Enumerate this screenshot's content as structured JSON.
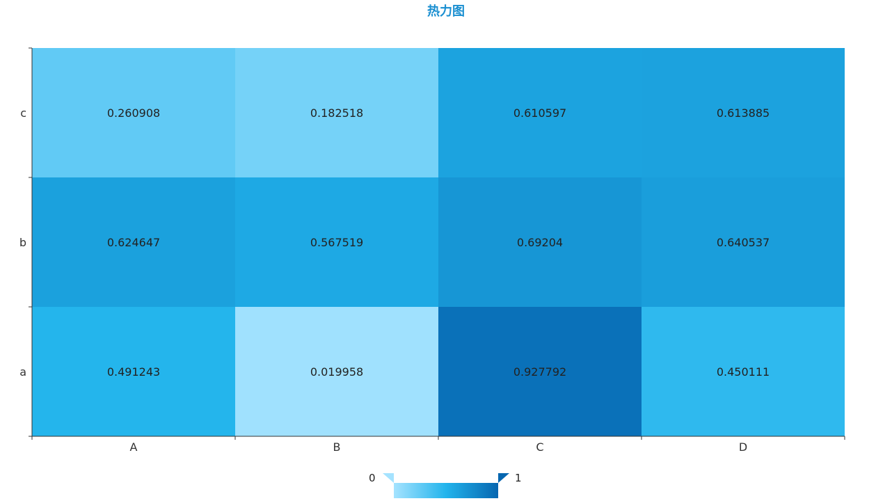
{
  "chart_data": {
    "type": "heatmap",
    "title": "热力图",
    "x_categories": [
      "A",
      "B",
      "C",
      "D"
    ],
    "y_categories": [
      "a",
      "b",
      "c"
    ],
    "values": [
      [
        0.491243,
        0.019958,
        0.927792,
        0.450111
      ],
      [
        0.624647,
        0.567519,
        0.69204,
        0.640537
      ],
      [
        0.260908,
        0.182518,
        0.610597,
        0.613885
      ]
    ],
    "value_labels": [
      [
        "0.491243",
        "0.019958",
        "0.927792",
        "0.450111"
      ],
      [
        "0.624647",
        "0.567519",
        "0.69204",
        "0.640537"
      ],
      [
        "0.260908",
        "0.182518",
        "0.610597",
        "0.613885"
      ]
    ],
    "color_scale": {
      "min": 0,
      "max": 1,
      "low_color": "#a5e3ff",
      "mid_color": "#22b4ec",
      "high_color": "#0666b0"
    },
    "legend": {
      "position": "bottom-center",
      "min_label": "0",
      "max_label": "1"
    }
  },
  "colors": {
    "title": "#1a8fd1",
    "axis": "#333333"
  }
}
